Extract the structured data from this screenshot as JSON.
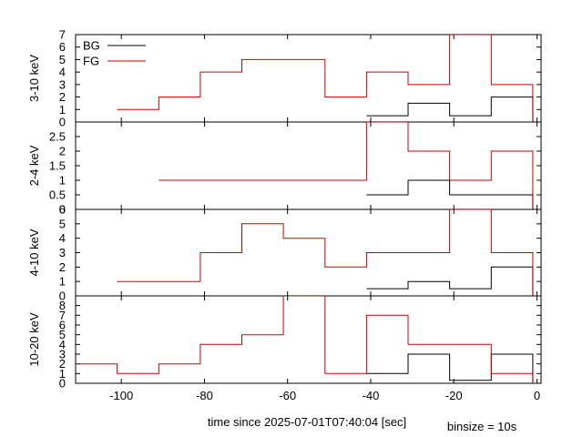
{
  "page": {
    "xlabel": "time since 2025-07-01T07:40:04 [sec]",
    "binsize_note": "binsize = 10s"
  },
  "colors": {
    "bg_line": "#000000",
    "fg_line": "#cc0000",
    "axis": "#000000"
  },
  "chart_data": [
    {
      "type": "line",
      "step": "post",
      "ylabel": "3-10 keV",
      "xlim": [
        -111,
        1
      ],
      "ylim": [
        0,
        7
      ],
      "yticks": [
        0,
        1,
        2,
        3,
        4,
        5,
        6,
        7
      ],
      "ytick_labels": [
        "0",
        "1",
        "2",
        "3",
        "4",
        "5",
        "6",
        "7"
      ],
      "legend": {
        "position": "top-left",
        "entries": [
          "BG",
          "FG"
        ]
      },
      "series": [
        {
          "name": "BG",
          "color": "#000000",
          "x": [
            -41,
            -31,
            -21,
            -11,
            -1
          ],
          "values": [
            0.5,
            1.5,
            0.5,
            2,
            0
          ]
        },
        {
          "name": "FG",
          "color": "#cc0000",
          "x": [
            -101,
            -91,
            -81,
            -71,
            -61,
            -51,
            -41,
            -31,
            -21,
            -11,
            -1
          ],
          "values": [
            1,
            2,
            4,
            5,
            5,
            2,
            4,
            3,
            7,
            3,
            0
          ]
        }
      ]
    },
    {
      "type": "line",
      "step": "post",
      "ylabel": "2-4 keV",
      "xlim": [
        -111,
        1
      ],
      "ylim": [
        0,
        3
      ],
      "yticks": [
        0,
        0.5,
        1,
        1.5,
        2,
        2.5
      ],
      "ytick_labels": [
        "0",
        "0.5",
        "1",
        "1.5",
        "2",
        "2.5"
      ],
      "series": [
        {
          "name": "BG",
          "color": "#000000",
          "x": [
            -41,
            -31,
            -21,
            -11,
            -1
          ],
          "values": [
            0.5,
            1,
            0.5,
            0.5,
            0
          ]
        },
        {
          "name": "FG",
          "color": "#cc0000",
          "x": [
            -91,
            -81,
            -71,
            -61,
            -51,
            -41,
            -31,
            -21,
            -11,
            -1
          ],
          "values": [
            1,
            1,
            1,
            1,
            1,
            3,
            2,
            1,
            2,
            0
          ]
        }
      ]
    },
    {
      "type": "line",
      "step": "post",
      "ylabel": "4-10 keV",
      "xlim": [
        -111,
        1
      ],
      "ylim": [
        0,
        6
      ],
      "yticks": [
        0,
        1,
        2,
        3,
        4,
        5,
        6
      ],
      "ytick_labels": [
        "0",
        "1",
        "2",
        "3",
        "4",
        "5",
        "6"
      ],
      "series": [
        {
          "name": "BG",
          "color": "#000000",
          "x": [
            -41,
            -31,
            -21,
            -11,
            -1
          ],
          "values": [
            0.5,
            1,
            0.5,
            2,
            0
          ]
        },
        {
          "name": "FG",
          "color": "#cc0000",
          "x": [
            -101,
            -91,
            -81,
            -71,
            -61,
            -51,
            -41,
            -31,
            -21,
            -11,
            -1
          ],
          "values": [
            1,
            1,
            3,
            5,
            4,
            2,
            3,
            3,
            6,
            3,
            0
          ]
        }
      ]
    },
    {
      "type": "line",
      "step": "post",
      "ylabel": "10-20 keV",
      "xlim": [
        -111,
        1
      ],
      "ylim": [
        0,
        9
      ],
      "yticks": [
        0,
        1,
        2,
        3,
        4,
        5,
        6,
        7,
        8
      ],
      "ytick_labels": [
        "0",
        "1",
        "2",
        "3",
        "4",
        "5",
        "6",
        "7",
        "8"
      ],
      "xticks": [
        -100,
        -80,
        -60,
        -40,
        -20,
        0
      ],
      "xtick_labels": [
        "-100",
        "-80",
        "-60",
        "-40",
        "-20",
        "0"
      ],
      "series": [
        {
          "name": "BG",
          "color": "#000000",
          "x": [
            -41,
            -31,
            -21,
            -11,
            -1
          ],
          "values": [
            1,
            3,
            0.3,
            3,
            0
          ]
        },
        {
          "name": "FG",
          "color": "#cc0000",
          "x": [
            -111,
            -101,
            -91,
            -81,
            -71,
            -61,
            -51,
            -41,
            -31,
            -11,
            -1
          ],
          "values": [
            2,
            1,
            2,
            4,
            5,
            9,
            1,
            7,
            4,
            1,
            0
          ]
        }
      ]
    }
  ]
}
